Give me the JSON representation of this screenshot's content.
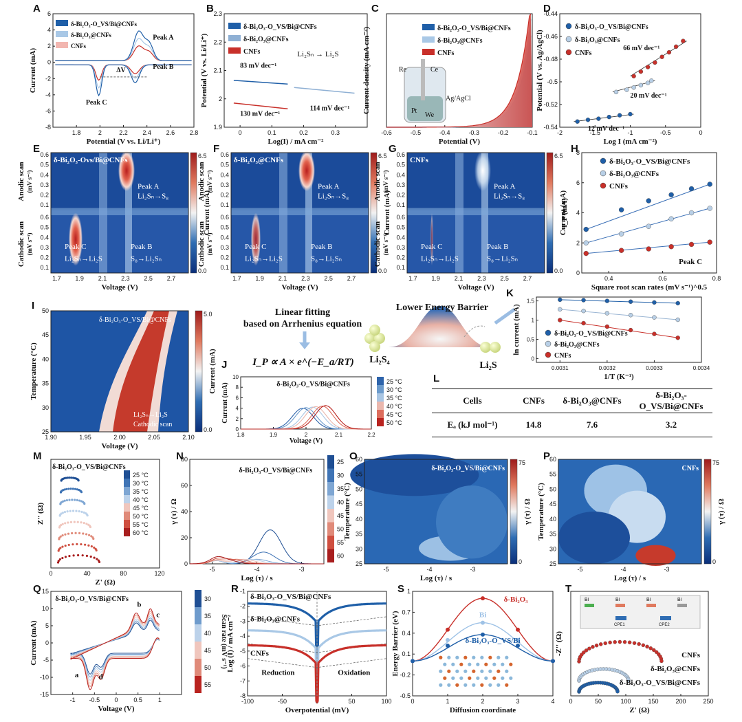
{
  "labels": {
    "A": "A",
    "B": "B",
    "C": "C",
    "D": "D",
    "E": "E",
    "F": "F",
    "G": "G",
    "H": "H",
    "I": "I",
    "J": "J",
    "K": "K",
    "L": "L",
    "M": "M",
    "N": "N",
    "O": "O",
    "P": "P",
    "Q": "Q",
    "R": "R",
    "S": "S",
    "T": "T"
  },
  "materials": {
    "m1": "δ-Bi₂O₃-O_VS/Bi@CNFs",
    "m2": "δ-Bi₂O₃@CNFs",
    "m3": "CNFs"
  },
  "colors": {
    "m1": "#1f5fa8",
    "m2": "#a9c8e6",
    "m3": "#c8302a"
  },
  "center": {
    "line1": "Linear fitting",
    "line2": "based on Arrhenius equation",
    "eq": "I_P ∝ A × e^(−E_a/RT)",
    "barrier": "Lower Energy Barrier",
    "left_species": "Li₂S₄",
    "right_species": "Li₂S"
  },
  "table": {
    "headers": [
      "Cells",
      "CNFs",
      "δ-Bi₂O₃@CNFs",
      "δ-Bi₂O₃-O_VS/Bi@CNFs"
    ],
    "row_label": "Eₐ (kJ mol⁻¹)",
    "values": [
      "14.8",
      "7.6",
      "3.2"
    ]
  },
  "chart_data": [
    {
      "id": "A",
      "type": "line",
      "xlabel": "Potential (V vs. Li/Li⁺)",
      "ylabel": "Current (mA)",
      "xlim": [
        1.6,
        2.8
      ],
      "ylim": [
        -8,
        6
      ],
      "xticks": [
        1.8,
        2.0,
        2.2,
        2.4,
        2.6,
        2.8
      ],
      "yticks": [
        -8,
        -6,
        -4,
        -2,
        0,
        2,
        4,
        6
      ],
      "legend": [
        "δ-Bi₂O₃-O_VS/Bi@CNFs",
        "δ-Bi₂O₃@CNFs",
        "CNFs"
      ],
      "annotations": [
        "Peak A",
        "Peak B",
        "Peak C",
        "ΔV"
      ]
    },
    {
      "id": "B",
      "type": "line",
      "xlabel": "Log(I) / mA cm⁻²",
      "ylabel": "Potential (V vs. Li/Li⁺)",
      "xlim": [
        -0.05,
        0.4
      ],
      "ylim": [
        1.9,
        2.3
      ],
      "xticks": [
        0.0,
        0.1,
        0.2,
        0.3
      ],
      "yticks": [
        1.9,
        2.0,
        2.1,
        2.2,
        2.3
      ],
      "legend": [
        "δ-Bi₂O₃-O_VS/Bi@CNFs",
        "δ-Bi₂O₃@CNFs",
        "CNFs"
      ],
      "annotations": [
        "Li₂Sₙ → Li₂S",
        "83 mV dec⁻¹",
        "130 mV dec⁻¹",
        "114 mV dec⁻¹"
      ],
      "series": [
        {
          "name": "δ-Bi₂O₃-O_VS/Bi@CNFs",
          "x": [
            -0.02,
            0.15
          ],
          "y": [
            2.065,
            2.052
          ]
        },
        {
          "name": "δ-Bi₂O₃@CNFs",
          "x": [
            0.17,
            0.36
          ],
          "y": [
            2.04,
            2.02
          ]
        },
        {
          "name": "CNFs",
          "x": [
            -0.02,
            0.15
          ],
          "y": [
            1.985,
            1.965
          ]
        }
      ]
    },
    {
      "id": "C",
      "type": "area",
      "xlabel": "Potential (V)",
      "ylabel": "Current density (mA cm⁻²)",
      "xlim": [
        -0.6,
        -0.1
      ],
      "ylim": [
        0,
        1
      ],
      "xticks": [
        -0.6,
        -0.5,
        -0.4,
        -0.3,
        -0.2,
        -0.1
      ],
      "legend": [
        "δ-Bi₂O₃-O_VS/Bi@CNFs",
        "δ-Bi₂O₃@CNFs",
        "CNFs"
      ],
      "annotations": [
        "Re",
        "Ce",
        "Ag/AgCl",
        "Pt",
        "We"
      ]
    },
    {
      "id": "D",
      "type": "scatter",
      "xlabel": "Log I (mA cm⁻²)",
      "ylabel": "Potential (V vs. Ag/AgCl)",
      "xlim": [
        -2.0,
        0.0
      ],
      "ylim": [
        -0.54,
        -0.44
      ],
      "xticks": [
        -2.0,
        -1.5,
        -1.0,
        -0.5,
        0.0
      ],
      "yticks": [
        -0.54,
        -0.52,
        -0.5,
        -0.48,
        -0.46,
        -0.44
      ],
      "legend": [
        "δ-Bi₂O₃-O_VS/Bi@CNFs",
        "δ-Bi₂O₃@CNFs",
        "CNFs"
      ],
      "annotations": [
        "66 mV dec⁻¹",
        "20 mV dec⁻¹",
        "12 mV dec⁻¹"
      ],
      "series": [
        {
          "name": "δ-Bi₂O₃-O_VS/Bi@CNFs",
          "x": [
            -1.75,
            -1.6,
            -1.45,
            -1.3,
            -1.15,
            -1.0
          ],
          "y": [
            -0.535,
            -0.5335,
            -0.5325,
            -0.531,
            -0.5295,
            -0.5285
          ]
        },
        {
          "name": "δ-Bi₂O₃@CNFs",
          "x": [
            -1.2,
            -1.05,
            -0.95,
            -0.85,
            -0.75,
            -0.7
          ],
          "y": [
            -0.509,
            -0.507,
            -0.505,
            -0.503,
            -0.501,
            -0.499
          ]
        },
        {
          "name": "CNFs",
          "x": [
            -0.95,
            -0.85,
            -0.75,
            -0.65,
            -0.55,
            -0.45,
            -0.35,
            -0.25
          ],
          "y": [
            -0.495,
            -0.491,
            -0.487,
            -0.483,
            -0.478,
            -0.474,
            -0.469,
            -0.464
          ]
        }
      ]
    },
    {
      "id": "E",
      "type": "heatmap",
      "title": "δ-Bi₂O₃-Ovs/Bi@CNFs",
      "xlabel": "Voltage (V)",
      "ylabel_top": "Anodic scan",
      "ylabel_bottom": "Cathodic scan",
      "yunit": "(mV s⁻¹)",
      "colorbar": "Current (mA)",
      "clim": [
        0.0,
        6.5
      ],
      "xticks": [
        1.7,
        1.9,
        2.1,
        2.3,
        2.5,
        2.7
      ],
      "yticks": [
        0.1,
        0.2,
        0.3,
        0.4,
        0.5,
        0.6
      ],
      "annotations": [
        "Peak A",
        "Li₂Sₙ→S₈",
        "Peak C",
        "Li₂Sₙ→Li₂S",
        "Peak B",
        "S₈→Li₂Sₙ"
      ]
    },
    {
      "id": "F",
      "type": "heatmap",
      "title": "δ-Bi₂O₃@CNFs",
      "xlabel": "Voltage (V)",
      "ylabel_top": "Anodic scan",
      "ylabel_bottom": "Cathodic scan",
      "yunit": "(mV s⁻¹)",
      "colorbar": "Current (mA)",
      "clim": [
        0.0,
        6.5
      ],
      "xticks": [
        1.7,
        1.9,
        2.1,
        2.3,
        2.5,
        2.7
      ],
      "yticks": [
        0.1,
        0.2,
        0.3,
        0.4,
        0.5,
        0.6
      ],
      "annotations": [
        "Peak A",
        "Li₂Sₙ→S₈",
        "Peak C",
        "Li₂Sₙ→Li₂S",
        "Peak B",
        "S₈→Li₂Sₙ"
      ]
    },
    {
      "id": "G",
      "type": "heatmap",
      "title": "CNFs",
      "xlabel": "Voltage (V)",
      "ylabel_top": "Anodic scan",
      "ylabel_bottom": "Cathodic scan",
      "yunit": "(mV s⁻¹)",
      "colorbar": "Current (mA)",
      "clim": [
        0.0,
        6.5
      ],
      "xticks": [
        1.7,
        1.9,
        2.1,
        2.3,
        2.5,
        2.7
      ],
      "yticks": [
        0.1,
        0.2,
        0.3,
        0.4,
        0.5,
        0.6
      ],
      "annotations": [
        "Peak A",
        "Li₂Sₙ→S₈",
        "Peak C",
        "Li₂Sₙ→Li₂S",
        "Peak B",
        "S₈→Li₂Sₙ"
      ]
    },
    {
      "id": "H",
      "type": "scatter",
      "xlabel": "Square root scan rates (mV s⁻¹)^0.5",
      "ylabel": "I_P (mA)",
      "xlim": [
        0.3,
        0.8
      ],
      "ylim": [
        0,
        8
      ],
      "xticks": [
        0.4,
        0.6,
        0.8
      ],
      "yticks": [
        0,
        2,
        4,
        6,
        8
      ],
      "legend": [
        "δ-Bi₂O₃-O_VS/Bi@CNFs",
        "δ-Bi₂O₃@CNFs",
        "CNFs"
      ],
      "annotations": [
        "Peak C"
      ],
      "series": [
        {
          "name": "δ-Bi₂O₃-O_VS/Bi@CNFs",
          "x": [
            0.316,
            0.447,
            0.548,
            0.632,
            0.707,
            0.775
          ],
          "y": [
            2.9,
            4.2,
            4.8,
            5.2,
            5.6,
            5.9
          ]
        },
        {
          "name": "δ-Bi₂O₃@CNFs",
          "x": [
            0.316,
            0.447,
            0.548,
            0.632,
            0.707,
            0.775
          ],
          "y": [
            2.0,
            2.6,
            3.1,
            3.6,
            4.0,
            4.3
          ]
        },
        {
          "name": "CNFs",
          "x": [
            0.316,
            0.447,
            0.548,
            0.632,
            0.707,
            0.775
          ],
          "y": [
            1.3,
            1.5,
            1.6,
            1.75,
            1.9,
            2.05
          ]
        }
      ]
    },
    {
      "id": "I",
      "type": "heatmap",
      "title": "δ-Bi₂O₃-O_VS/Bi@CNFs",
      "xlabel": "Voltage (V)",
      "ylabel": "Temperature (°C)",
      "colorbar": "Current (mA)",
      "clim": [
        0.0,
        5.0
      ],
      "xticks": [
        1.9,
        1.95,
        2.0,
        2.05,
        2.1
      ],
      "yticks": [
        25,
        30,
        35,
        40,
        45,
        50
      ],
      "annotations": [
        "Li₂Sₙ→Li₂S",
        "Cathodic scan"
      ]
    },
    {
      "id": "J",
      "type": "line",
      "title": "δ-Bi₂O₃-O_VS/Bi@CNFs",
      "xlabel": "Voltage (V)",
      "ylabel": "Current (mA)",
      "xlim": [
        1.8,
        2.2
      ],
      "ylim": [
        0,
        10
      ],
      "xticks": [
        1.8,
        1.9,
        2.0,
        2.1,
        2.2
      ],
      "yticks": [
        0,
        2,
        4,
        6,
        8,
        10
      ],
      "legend": [
        "25 °C",
        "30 °C",
        "35 °C",
        "40 °C",
        "45 °C",
        "50 °C"
      ],
      "series": [
        {
          "name": "25 °C",
          "peak_x": 1.99,
          "peak_y": 4.0
        },
        {
          "name": "30 °C",
          "peak_x": 2.0,
          "peak_y": 4.1
        },
        {
          "name": "35 °C",
          "peak_x": 2.02,
          "peak_y": 4.2
        },
        {
          "name": "40 °C",
          "peak_x": 2.03,
          "peak_y": 4.3
        },
        {
          "name": "45 °C",
          "peak_x": 2.05,
          "peak_y": 4.4
        },
        {
          "name": "50 °C",
          "peak_x": 2.06,
          "peak_y": 4.5
        }
      ]
    },
    {
      "id": "K",
      "type": "scatter",
      "xlabel": "1/T (K⁻¹)",
      "ylabel": "ln current (mA)",
      "xlim": [
        0.00305,
        0.0034
      ],
      "ylim": [
        -0.1,
        1.6
      ],
      "xticks": [
        0.0031,
        0.0032,
        0.0033,
        0.0034
      ],
      "yticks": [
        0.0,
        0.5,
        1.0,
        1.5
      ],
      "legend": [
        "δ-Bi₂O₃-O_VS/Bi@CNFs",
        "δ-Bi₂O₃@CNFs",
        "CNFs"
      ],
      "series": [
        {
          "name": "δ-Bi₂O₃-O_VS/Bi@CNFs",
          "x": [
            0.0031,
            0.00315,
            0.0032,
            0.00325,
            0.0033,
            0.00335
          ],
          "y": [
            1.53,
            1.52,
            1.5,
            1.48,
            1.46,
            1.44
          ]
        },
        {
          "name": "δ-Bi₂O₃@CNFs",
          "x": [
            0.0031,
            0.00315,
            0.0032,
            0.00325,
            0.0033,
            0.00335
          ],
          "y": [
            1.28,
            1.24,
            1.18,
            1.13,
            1.07,
            1.01
          ]
        },
        {
          "name": "CNFs",
          "x": [
            0.0031,
            0.00315,
            0.0032,
            0.00325,
            0.0033,
            0.00335
          ],
          "y": [
            1.0,
            0.92,
            0.83,
            0.74,
            0.64,
            0.54
          ]
        }
      ]
    },
    {
      "id": "M",
      "type": "scatter",
      "title": "δ-Bi₂O₃-O_VS/Bi@CNFs",
      "xlabel": "Z' (Ω)",
      "ylabel": "Z'' (Ω)",
      "xlim": [
        0,
        120
      ],
      "xticks": [
        0,
        40,
        80,
        120
      ],
      "legend": [
        "25 °C",
        "30 °C",
        "35 °C",
        "40 °C",
        "45 °C",
        "50 °C",
        "55 °C",
        "60 °C"
      ]
    },
    {
      "id": "N",
      "type": "line",
      "title": "δ-Bi₂O₃-O_VS/Bi@CNFs",
      "xlabel": "Log (τ) / s",
      "ylabel": "γ (τ) / Ω",
      "xlim": [
        -5.5,
        -2.5
      ],
      "ylim": [
        0,
        80
      ],
      "xticks": [
        -5,
        -4,
        -3
      ],
      "yticks": [
        0,
        20,
        40,
        60,
        80
      ],
      "legend": [
        "25",
        "30",
        "35",
        "40",
        "45",
        "50",
        "55",
        "60"
      ]
    },
    {
      "id": "O",
      "type": "heatmap",
      "title": "δ-Bi₂O₃-O_VS/Bi@CNFs",
      "xlabel": "Log (τ) / s",
      "ylabel": "Temperature (°C)",
      "colorbar": "γ (τ) / Ω",
      "clim": [
        0,
        75
      ],
      "xticks": [
        -5,
        -4,
        -3
      ],
      "yticks": [
        25,
        30,
        35,
        40,
        45,
        50,
        55,
        60
      ]
    },
    {
      "id": "P",
      "type": "heatmap",
      "title": "CNFs",
      "xlabel": "Log (τ) / s",
      "ylabel": "Temperature (°C)",
      "colorbar": "γ (τ) / Ω",
      "clim": [
        0,
        75
      ],
      "xticks": [
        -5,
        -4,
        -3
      ],
      "yticks": [
        25,
        30,
        35,
        40,
        45,
        50,
        55,
        60
      ]
    },
    {
      "id": "Q",
      "type": "line",
      "title": "δ-Bi₂O₃-O_VS/Bi@CNFs",
      "xlabel": "Voltage (V)",
      "ylabel": "Current (mA)",
      "xlim": [
        -1.5,
        1.5
      ],
      "ylim": [
        -15,
        15
      ],
      "xticks": [
        -1.0,
        -0.5,
        0.0,
        0.5,
        1.0
      ],
      "yticks": [
        -15,
        -10,
        -5,
        0,
        5,
        10,
        15
      ],
      "colorbar": "Scan rate (mV s⁻¹)",
      "legend": [
        "30",
        "35",
        "40",
        "45",
        "50",
        "55"
      ],
      "annotations": [
        "a",
        "b",
        "c",
        "d"
      ]
    },
    {
      "id": "R",
      "type": "line",
      "xlabel": "Overpotential (mV)",
      "ylabel": "Log (I) / mA cm⁻²",
      "xlim": [
        -100,
        100
      ],
      "ylim": [
        -8,
        -1
      ],
      "xticks": [
        -100,
        -50,
        0,
        50,
        100
      ],
      "yticks": [
        -8,
        -7,
        -6,
        -5,
        -4,
        -3,
        -2,
        -1
      ],
      "legend": [
        "δ-Bi₂O₃-O_VS/Bi@CNFs",
        "δ-Bi₂O₃@CNFs",
        "CNFs"
      ],
      "annotations": [
        "Reduction",
        "Oxidation"
      ]
    },
    {
      "id": "S",
      "type": "line",
      "xlabel": "Diffusion coordinate",
      "ylabel": "Energy Barrier (eV)",
      "xlim": [
        0,
        4
      ],
      "ylim": [
        -0.5,
        1.0
      ],
      "xticks": [
        0,
        1,
        2,
        3,
        4
      ],
      "yticks": [
        -0.5,
        -0.2,
        0.1,
        0.4,
        0.7,
        1.0
      ],
      "legend": [
        "δ-Bi₂O₃",
        "Bi",
        "δ-Bi₂O₃-O_VS/Bi"
      ],
      "series": [
        {
          "name": "δ-Bi₂O₃",
          "x": [
            0,
            1,
            2,
            3,
            4
          ],
          "y": [
            0.0,
            0.45,
            0.9,
            0.45,
            0.0
          ]
        },
        {
          "name": "Bi",
          "x": [
            0,
            1,
            2,
            3,
            4
          ],
          "y": [
            0.0,
            0.3,
            0.55,
            0.3,
            0.0
          ]
        },
        {
          "name": "δ-Bi₂O₃-O_VS/Bi",
          "x": [
            0,
            1,
            2,
            3,
            4
          ],
          "y": [
            0.0,
            0.22,
            0.38,
            0.22,
            0.0
          ]
        }
      ]
    },
    {
      "id": "T",
      "type": "scatter",
      "xlabel": "Z' (Ω)",
      "ylabel": "-Z'' (Ω)",
      "xlim": [
        0,
        250
      ],
      "xticks": [
        0,
        50,
        100,
        150,
        200,
        250
      ],
      "legend": [
        "CNFs",
        "δ-Bi₂O₃@CNFs",
        "δ-Bi₂O₃-O_VS/Bi@CNFs"
      ],
      "annotations": [
        "Bi",
        "Bi",
        "Bi",
        "Bi",
        "CPE1",
        "CPE2"
      ]
    }
  ]
}
